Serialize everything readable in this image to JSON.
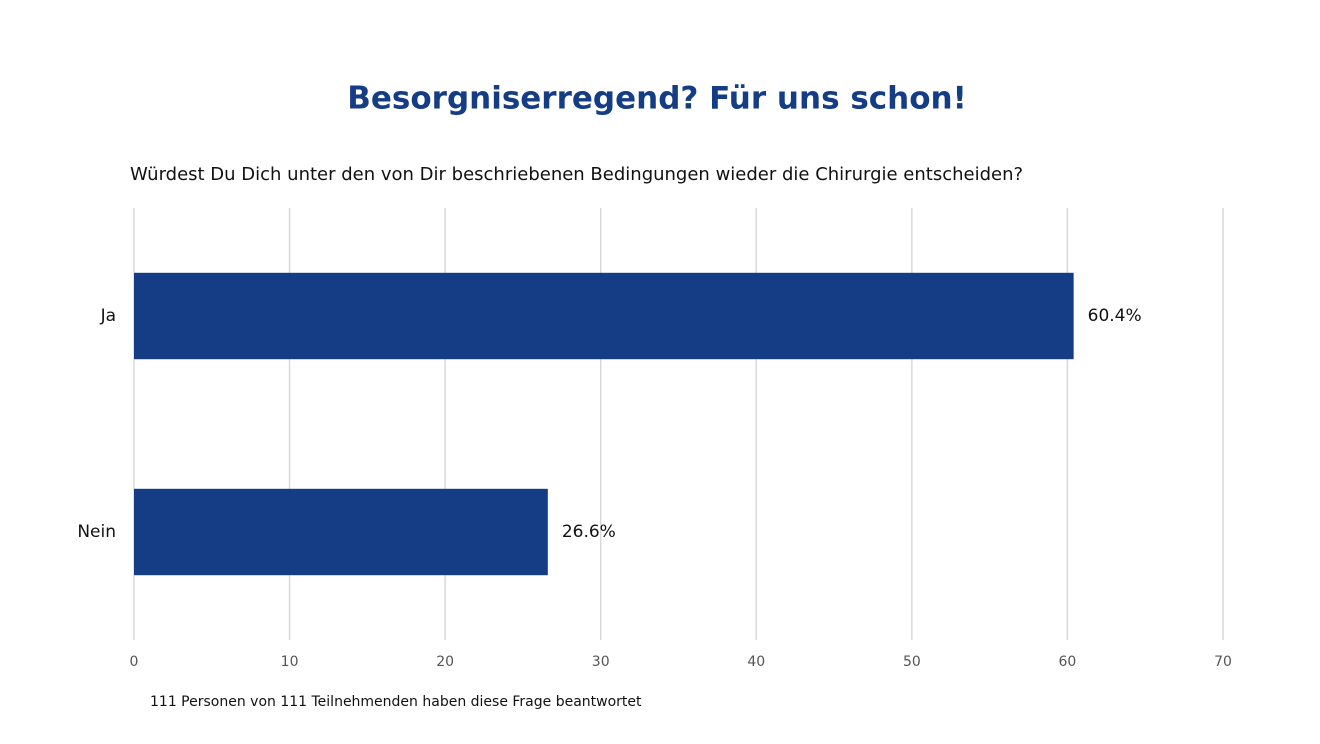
{
  "chart_data": {
    "type": "hbar",
    "title": "Besorgniserregend? Für uns schon!",
    "subtitle": "Würdest Du Dich unter den von Dir beschriebenen Bedingungen wieder die Chirurgie entscheiden?",
    "categories": [
      "Ja",
      "Nein"
    ],
    "values": [
      60.4,
      26.6
    ],
    "value_labels": [
      "60.4%",
      "26.6%"
    ],
    "color": "#143d85",
    "xlim": [
      0,
      70
    ],
    "xticks": [
      0,
      10,
      20,
      30,
      40,
      50,
      60,
      70
    ],
    "grid": true,
    "note": "111 Personen von 111 Teilnehmenden haben diese Frage beantwortet"
  }
}
